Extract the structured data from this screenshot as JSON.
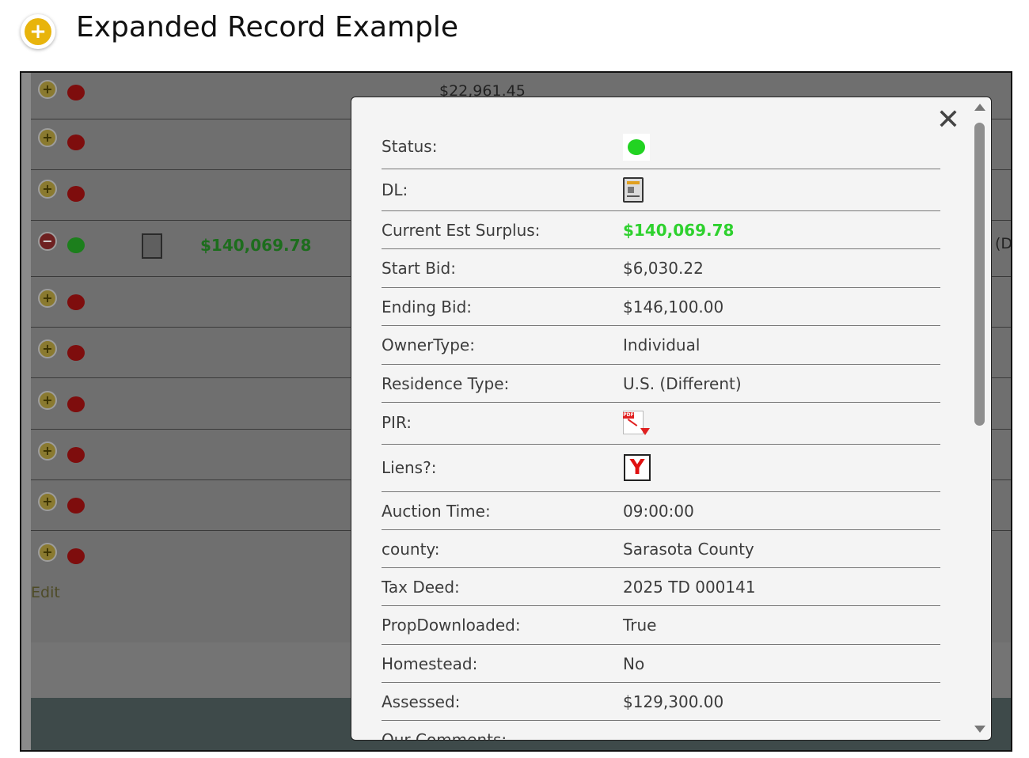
{
  "header": {
    "title": "Expanded Record Example",
    "icon": "plus-circle-icon"
  },
  "background": {
    "top_amount": "$22,961.45",
    "highlight_amount": "$140,069.78",
    "right_edge_text": "(D",
    "edit_label": "Edit",
    "row_count": 10
  },
  "modal": {
    "close_symbol": "✕",
    "fields": [
      {
        "label": "Status:",
        "type": "status-dot",
        "color": "#22d322"
      },
      {
        "label": "DL:",
        "type": "dl-icon"
      },
      {
        "label": "Current Est Surplus:",
        "value": "$140,069.78",
        "type": "text-green"
      },
      {
        "label": "Start Bid:",
        "value": "$6,030.22",
        "type": "text"
      },
      {
        "label": "Ending Bid:",
        "value": "$146,100.00",
        "type": "text"
      },
      {
        "label": "OwnerType:",
        "value": "Individual",
        "type": "text"
      },
      {
        "label": "Residence Type:",
        "value": "U.S. (Different)",
        "type": "text"
      },
      {
        "label": "PIR:",
        "type": "pdf-icon",
        "icon_text": "PDF"
      },
      {
        "label": "Liens?:",
        "type": "liens-icon",
        "value": "Y"
      },
      {
        "label": "Auction Time:",
        "value": "09:00:00",
        "type": "text"
      },
      {
        "label": "county:",
        "value": "Sarasota County",
        "type": "text"
      },
      {
        "label": "Tax Deed:",
        "value": "2025 TD 000141",
        "type": "text"
      },
      {
        "label": "PropDownloaded:",
        "value": "True",
        "type": "text"
      },
      {
        "label": "Homestead:",
        "value": "No",
        "type": "text"
      },
      {
        "label": "Assessed:",
        "value": "$129,300.00",
        "type": "text"
      },
      {
        "label": "Our Comments:",
        "type": "text",
        "value": ""
      }
    ]
  }
}
